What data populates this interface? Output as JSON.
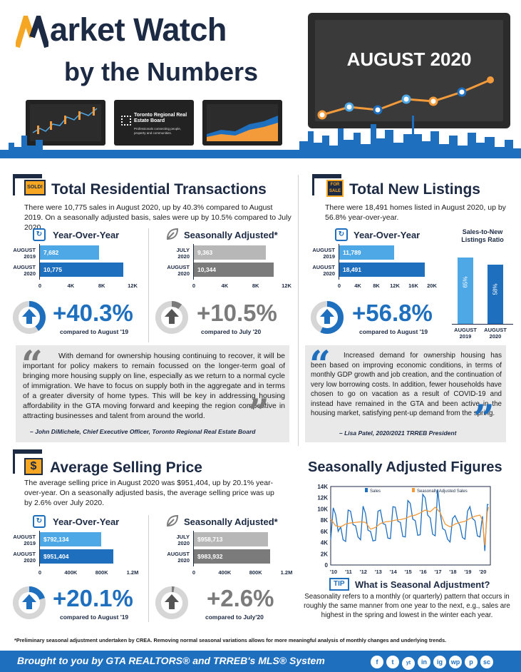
{
  "header": {
    "title_line1_rest": "arket Watch",
    "title_line2": "by the Numbers",
    "month": "AUGUST 2020",
    "trreb_name": "Toronto Regional Real Estate Board",
    "trreb_tagline": "Professionals connecting people, property and communities."
  },
  "transactions": {
    "sign": "SOLD!",
    "title": "Total Residential Transactions",
    "body": "There were 10,775 sales in August 2020, up by 40.3% compared to August 2019. On a seasonally adjusted basis, sales were up by 10.5% compared to July 2020.",
    "yoy": {
      "title": "Year-Over-Year",
      "rows": [
        {
          "label1": "AUGUST",
          "label2": "2019",
          "value": 7682,
          "text": "7,682",
          "color": "#4ea8e6"
        },
        {
          "label1": "AUGUST",
          "label2": "2020",
          "value": 10775,
          "text": "10,775",
          "color": "#1f6fbf"
        }
      ],
      "ticks": [
        "0",
        "4K",
        "8K",
        "12K"
      ],
      "max": 12000,
      "pct": "+40.3%",
      "pct_value": 40.3,
      "compare": "compared to August '19"
    },
    "sa": {
      "title": "Seasonally Adjusted*",
      "rows": [
        {
          "label1": "JULY",
          "label2": "2020",
          "value": 9363,
          "text": "9,363",
          "color": "#b7b7b7"
        },
        {
          "label1": "AUGUST",
          "label2": "2020",
          "value": 10344,
          "text": "10,344",
          "color": "#7b7b7b"
        }
      ],
      "ticks": [
        "0",
        "4K",
        "8K",
        "12K"
      ],
      "max": 12000,
      "pct": "+10.5%",
      "pct_value": 10.5,
      "compare": "compared to July '20"
    }
  },
  "listings": {
    "sign": "FOR SALE",
    "title": "Total New Listings",
    "body": "There were 18,491 homes listed in August 2020, up by 56.8% year-over-year.",
    "yoy": {
      "title": "Year-Over-Year",
      "rows": [
        {
          "label1": "AUGUST",
          "label2": "2019",
          "value": 11789,
          "text": "11,789",
          "color": "#4ea8e6"
        },
        {
          "label1": "AUGUST",
          "label2": "2020",
          "value": 18491,
          "text": "18,491",
          "color": "#1f6fbf"
        }
      ],
      "ticks": [
        "0",
        "4K",
        "8K",
        "12K",
        "16K",
        "20K"
      ],
      "max": 20000,
      "pct": "+56.8%",
      "pct_value": 56.8,
      "compare": "compared to August '19"
    },
    "ratio": {
      "title": "Sales-to-New Listings Ratio",
      "bars": [
        {
          "label1": "AUGUST",
          "label2": "2019",
          "value": 65,
          "text": "65%",
          "color": "#4ea8e6"
        },
        {
          "label1": "AUGUST",
          "label2": "2020",
          "value": 58,
          "text": "58%",
          "color": "#1f6fbf"
        }
      ]
    }
  },
  "quote1": {
    "text": "With demand for ownership housing continuing to recover, it will be important for policy makers to remain focussed on the longer-term goal of bringing more housing supply on line, especially as we return to a normal cycle of immigration. We have to focus on supply both in the aggregate and in terms of a greater diversity of home types. This will be key in addressing housing affordability in the GTA moving forward and keeping the region competitive in attracting businesses and talent from around the world.",
    "attribution": "– John DiMichele, Chief Executive Officer, Toronto Regional Real Estate Board"
  },
  "quote2": {
    "text": "Increased demand for ownership housing has been based on improving economic conditions, in terms of monthly GDP growth and job creation, and the continuation of very low borrowing costs. In addition, fewer households have chosen to go on vacation as a result of COVID-19 and instead have remained in the GTA and been active in the housing market, satisfying pent-up demand from the spring.",
    "attribution": "– Lisa Patel, 2020/2021 TRREB President"
  },
  "price": {
    "title": "Average Selling Price",
    "body": "The average selling price in August 2020 was $951,404, up by 20.1% year-over-year. On a seasonally adjusted basis, the average selling price was up by 2.6% over July 2020.",
    "yoy": {
      "title": "Year-Over-Year",
      "rows": [
        {
          "label1": "AUGUST",
          "label2": "2019",
          "value": 792134,
          "text": "$792,134",
          "color": "#4ea8e6"
        },
        {
          "label1": "AUGUST",
          "label2": "2020",
          "value": 951404,
          "text": "$951,404",
          "color": "#1f6fbf"
        }
      ],
      "ticks": [
        "0",
        "400K",
        "800K",
        "1.2M"
      ],
      "max": 1200000,
      "pct": "+20.1%",
      "pct_value": 20.1,
      "compare": "compared to August '19"
    },
    "sa": {
      "title": "Seasonally Adjusted*",
      "rows": [
        {
          "label1": "JULY",
          "label2": "2020",
          "value": 958713,
          "text": "$958,713",
          "color": "#b7b7b7"
        },
        {
          "label1": "AUGUST",
          "label2": "2020",
          "value": 983932,
          "text": "$983,932",
          "color": "#7b7b7b"
        }
      ],
      "ticks": [
        "0",
        "400K",
        "800K",
        "1.2M"
      ],
      "max": 1200000,
      "pct": "+2.6%",
      "pct_value": 2.6,
      "compare": "compared to July'20"
    }
  },
  "saf": {
    "title": "Seasonally Adjusted Figures",
    "tip": "TIP",
    "question": "What is Seasonal Adjustment?",
    "answer": "Seasonality refers to a monthly (or quarterly) pattern that occurs in roughly the same manner from one year to the next, e.g., sales are highest in the spring and lowest in the winter each year."
  },
  "chart_data": {
    "type": "line",
    "title": "Seasonally Adjusted Figures",
    "x_ticks": [
      "'10",
      "'11",
      "'12",
      "'13",
      "'14",
      "'15",
      "'16",
      "'17",
      "'18",
      "'19",
      "'20"
    ],
    "y_ticks": [
      "0",
      "2K",
      "4K",
      "6K",
      "8K",
      "10K",
      "12K",
      "14K"
    ],
    "ylim": [
      0,
      14000
    ],
    "xlim": [
      2010,
      2020.7
    ],
    "series": [
      {
        "name": "Sales",
        "color": "#1f6fbf",
        "x": [
          2010.0,
          2010.17,
          2010.33,
          2010.5,
          2010.67,
          2010.83,
          2011.0,
          2011.17,
          2011.33,
          2011.5,
          2011.67,
          2011.83,
          2012.0,
          2012.17,
          2012.33,
          2012.5,
          2012.67,
          2012.83,
          2013.0,
          2013.17,
          2013.33,
          2013.5,
          2013.67,
          2013.83,
          2014.0,
          2014.17,
          2014.33,
          2014.5,
          2014.67,
          2014.83,
          2015.0,
          2015.17,
          2015.33,
          2015.5,
          2015.67,
          2015.83,
          2016.0,
          2016.17,
          2016.33,
          2016.5,
          2016.67,
          2016.83,
          2017.0,
          2017.17,
          2017.33,
          2017.5,
          2017.67,
          2017.83,
          2018.0,
          2018.17,
          2018.33,
          2018.5,
          2018.67,
          2018.83,
          2019.0,
          2019.17,
          2019.33,
          2019.5,
          2019.67,
          2019.83,
          2020.0,
          2020.17,
          2020.33,
          2020.5,
          2020.58
        ],
        "values": [
          4500,
          10200,
          9000,
          6000,
          6800,
          4500,
          4200,
          9800,
          9600,
          7200,
          7000,
          5000,
          4500,
          10500,
          9200,
          6200,
          6000,
          4300,
          4400,
          9600,
          9800,
          7400,
          7200,
          4800,
          4700,
          10400,
          10300,
          7800,
          7600,
          5100,
          5000,
          11500,
          11000,
          8200,
          7900,
          5300,
          5400,
          12600,
          12000,
          8900,
          8400,
          5500,
          5200,
          13500,
          9500,
          6500,
          6200,
          4600,
          4100,
          8300,
          8800,
          7800,
          7000,
          4900,
          4600,
          9600,
          10400,
          8300,
          7900,
          5200,
          5000,
          8700,
          2500,
          10800,
          10775
        ]
      },
      {
        "name": "Seasonally Adjusted Sales",
        "color": "#f39a3a",
        "x": [
          2010.0,
          2010.33,
          2010.67,
          2011.0,
          2011.33,
          2011.67,
          2012.0,
          2012.33,
          2012.67,
          2013.0,
          2013.33,
          2013.67,
          2014.0,
          2014.33,
          2014.67,
          2015.0,
          2015.33,
          2015.67,
          2016.0,
          2016.33,
          2016.67,
          2017.0,
          2017.33,
          2017.67,
          2018.0,
          2018.33,
          2018.67,
          2019.0,
          2019.33,
          2019.67,
          2020.0,
          2020.17,
          2020.33,
          2020.5,
          2020.58
        ],
        "values": [
          8200,
          7000,
          6800,
          7300,
          7500,
          7600,
          7700,
          7600,
          6400,
          6700,
          7400,
          7700,
          7800,
          8000,
          8100,
          8300,
          8700,
          8900,
          9300,
          9800,
          9500,
          10300,
          9400,
          7300,
          6800,
          7300,
          7600,
          7800,
          8300,
          8700,
          8900,
          8000,
          3500,
          9500,
          10344
        ]
      }
    ],
    "legend": "top"
  },
  "footnote": "*Preliminary seasonal adjustment undertaken by CREA. Removing normal seasonal variations allows for more meaningful analysis of monthly changes and underlying trends.",
  "footer": {
    "text": "Brought to you by GTA REALTORS® and TRREB's MLS® System",
    "social": [
      "f",
      "t",
      "yt",
      "in",
      "ig",
      "wp",
      "p",
      "sc"
    ]
  }
}
